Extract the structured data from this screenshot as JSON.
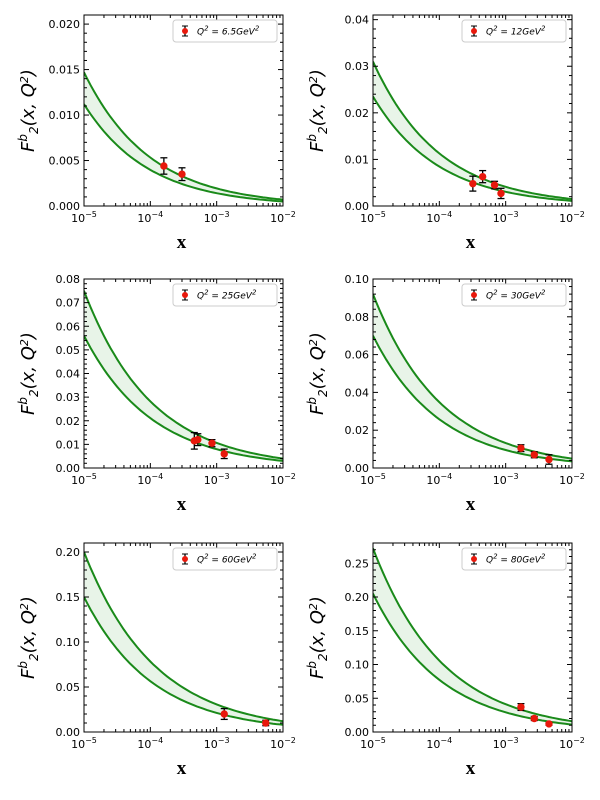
{
  "colors": {
    "curve": "#1a8a1a",
    "band_fill": "#e8f4e8",
    "marker": "#e8180c",
    "errorbar": "#000000"
  },
  "chart_data": [
    {
      "type": "scatter",
      "title": "",
      "xlabel": "x",
      "ylabel": "F_2^b(x, Q^2)",
      "xscale": "log",
      "xlim": [
        1e-05,
        0.01
      ],
      "ylim": [
        0,
        0.021
      ],
      "yticks": [
        "0.000",
        "0.005",
        "0.010",
        "0.015",
        "0.020"
      ],
      "xticks": [
        "10^-5",
        "10^-4",
        "10^-3",
        "10^-2"
      ],
      "legend": "Q^2 = 6.5GeV^2",
      "legend_placement": "top-right",
      "band": {
        "upper_at_xmin": 0.0147,
        "lower_at_xmin": 0.0112,
        "upper_at_xmax": 0.0007,
        "lower_at_xmax": 0.0005
      },
      "points": [
        {
          "x": 0.00016,
          "y": 0.0044,
          "err": 0.0009
        },
        {
          "x": 0.0003,
          "y": 0.0035,
          "err": 0.0007
        }
      ]
    },
    {
      "type": "scatter",
      "title": "",
      "xlabel": "x",
      "ylabel": "F_2^b(x, Q^2)",
      "xscale": "log",
      "xlim": [
        1e-05,
        0.01
      ],
      "ylim": [
        0,
        0.041
      ],
      "yticks": [
        "0.00",
        "0.01",
        "0.02",
        "0.03",
        "0.04"
      ],
      "xticks": [
        "10^-5",
        "10^-4",
        "10^-3",
        "10^-2"
      ],
      "legend": "Q^2 = 12GeV^2",
      "legend_placement": "top-right",
      "band": {
        "upper_at_xmin": 0.031,
        "lower_at_xmin": 0.0235,
        "upper_at_xmax": 0.0015,
        "lower_at_xmax": 0.0011
      },
      "points": [
        {
          "x": 0.00032,
          "y": 0.0048,
          "err": 0.0016
        },
        {
          "x": 0.00045,
          "y": 0.0063,
          "err": 0.0013
        },
        {
          "x": 0.00068,
          "y": 0.0045,
          "err": 0.0008
        },
        {
          "x": 0.00085,
          "y": 0.0027,
          "err": 0.0011
        }
      ]
    },
    {
      "type": "scatter",
      "title": "",
      "xlabel": "x",
      "ylabel": "F_2^b(x, Q^2)",
      "xscale": "log",
      "xlim": [
        1e-05,
        0.01
      ],
      "ylim": [
        0,
        0.08
      ],
      "yticks": [
        "0.00",
        "0.01",
        "0.02",
        "0.03",
        "0.04",
        "0.05",
        "0.06",
        "0.07",
        "0.08"
      ],
      "xticks": [
        "10^-5",
        "10^-4",
        "10^-3",
        "10^-2"
      ],
      "legend": "Q^2 = 25GeV^2",
      "legend_placement": "top-right",
      "band": {
        "upper_at_xmin": 0.075,
        "lower_at_xmin": 0.056,
        "upper_at_xmax": 0.004,
        "lower_at_xmax": 0.003
      },
      "points": [
        {
          "x": 0.00046,
          "y": 0.0115,
          "err": 0.0035
        },
        {
          "x": 0.00052,
          "y": 0.012,
          "err": 0.0025
        },
        {
          "x": 0.00085,
          "y": 0.0105,
          "err": 0.0015
        },
        {
          "x": 0.0013,
          "y": 0.006,
          "err": 0.002
        }
      ]
    },
    {
      "type": "scatter",
      "title": "",
      "xlabel": "x",
      "ylabel": "F_2^b(x, Q^2)",
      "xscale": "log",
      "xlim": [
        1e-05,
        0.01
      ],
      "ylim": [
        0,
        0.1
      ],
      "yticks": [
        "0.00",
        "0.02",
        "0.04",
        "0.06",
        "0.08",
        "0.10"
      ],
      "xticks": [
        "10^-5",
        "10^-4",
        "10^-3",
        "10^-2"
      ],
      "legend": "Q^2 = 30GeV^2",
      "legend_placement": "top-right",
      "band": {
        "upper_at_xmin": 0.092,
        "lower_at_xmin": 0.07,
        "upper_at_xmax": 0.005,
        "lower_at_xmax": 0.0035
      },
      "points": [
        {
          "x": 0.0017,
          "y": 0.0105,
          "err": 0.0018
        },
        {
          "x": 0.0027,
          "y": 0.007,
          "err": 0.0016
        },
        {
          "x": 0.0045,
          "y": 0.0045,
          "err": 0.0025
        }
      ]
    },
    {
      "type": "scatter",
      "title": "",
      "xlabel": "x",
      "ylabel": "F_2^b(x, Q^2)",
      "xscale": "log",
      "xlim": [
        1e-05,
        0.01
      ],
      "ylim": [
        0,
        0.21
      ],
      "yticks": [
        "0.00",
        "0.05",
        "0.10",
        "0.15",
        "0.20"
      ],
      "xticks": [
        "10^-5",
        "10^-4",
        "10^-3",
        "10^-2"
      ],
      "legend": "Q^2 = 60GeV^2",
      "legend_placement": "top-right",
      "band": {
        "upper_at_xmin": 0.2,
        "lower_at_xmin": 0.15,
        "upper_at_xmax": 0.012,
        "lower_at_xmax": 0.008
      },
      "points": [
        {
          "x": 0.0013,
          "y": 0.02,
          "err": 0.006
        },
        {
          "x": 0.0055,
          "y": 0.01,
          "err": 0.003
        }
      ]
    },
    {
      "type": "scatter",
      "title": "",
      "xlabel": "x",
      "ylabel": "F_2^b(x, Q^2)",
      "xscale": "log",
      "xlim": [
        1e-05,
        0.01
      ],
      "ylim": [
        0,
        0.28
      ],
      "yticks": [
        "0.00",
        "0.05",
        "0.10",
        "0.15",
        "0.20",
        "0.25"
      ],
      "xticks": [
        "10^-5",
        "10^-4",
        "10^-3",
        "10^-2"
      ],
      "legend": "Q^2 = 80GeV^2",
      "legend_placement": "top-right",
      "band": {
        "upper_at_xmin": 0.272,
        "lower_at_xmin": 0.205,
        "upper_at_xmax": 0.016,
        "lower_at_xmax": 0.011
      },
      "points": [
        {
          "x": 0.0017,
          "y": 0.037,
          "err": 0.005
        },
        {
          "x": 0.0027,
          "y": 0.02,
          "err": 0.003
        },
        {
          "x": 0.0045,
          "y": 0.012,
          "err": 0.002
        }
      ]
    }
  ]
}
